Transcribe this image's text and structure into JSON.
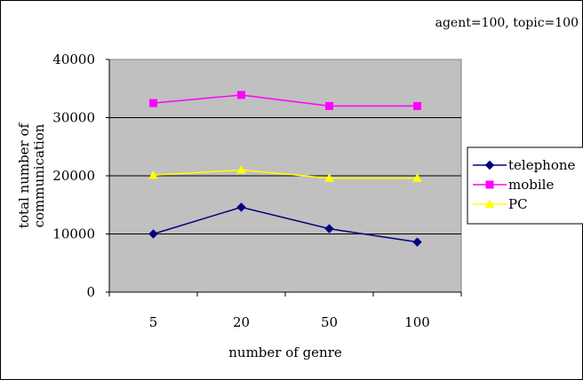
{
  "chart_data": {
    "type": "line",
    "title": "",
    "annotation": "agent=100, topic=100",
    "xlabel": "number of genre",
    "ylabel_lines": [
      "total number of",
      "communication"
    ],
    "categories": [
      "5",
      "20",
      "50",
      "100"
    ],
    "ylim": [
      0,
      40000
    ],
    "yticks": [
      "0",
      "10000",
      "20000",
      "30000",
      "40000"
    ],
    "grid": true,
    "plot_background": "#C0C0C0",
    "legend_position": "right",
    "series": [
      {
        "name": "telephone",
        "values": [
          10000,
          14600,
          10900,
          8600
        ],
        "color": "#000080",
        "marker": "diamond"
      },
      {
        "name": "mobile",
        "values": [
          32500,
          33900,
          32000,
          32000
        ],
        "color": "#FF00FF",
        "marker": "square"
      },
      {
        "name": "PC",
        "values": [
          20100,
          21000,
          19600,
          19600
        ],
        "color": "#FFFF00",
        "marker": "triangle"
      }
    ]
  }
}
